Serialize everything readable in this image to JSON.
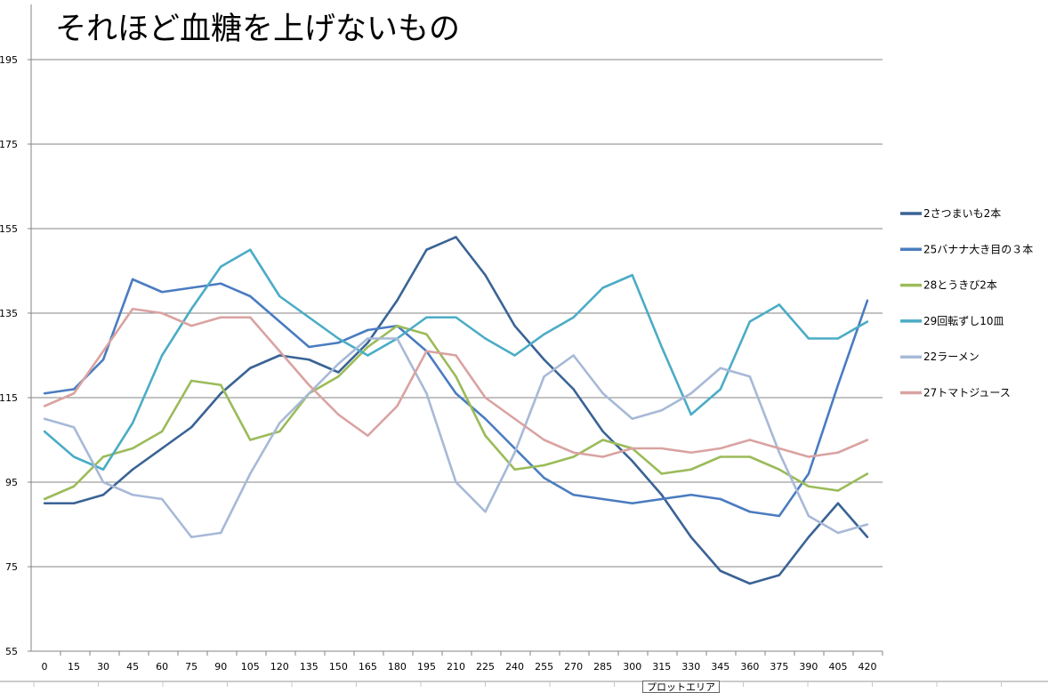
{
  "chart_data": {
    "type": "line",
    "title": "それほど血糖を上げないもの",
    "xlabel": "",
    "ylabel": "",
    "x": [
      0,
      15,
      30,
      45,
      60,
      75,
      90,
      105,
      120,
      135,
      150,
      165,
      180,
      195,
      210,
      225,
      240,
      255,
      270,
      285,
      300,
      315,
      330,
      345,
      360,
      375,
      390,
      405,
      420
    ],
    "ylim": [
      55,
      195
    ],
    "yticks": [
      55,
      75,
      95,
      115,
      135,
      155,
      175,
      195
    ],
    "grid": true,
    "legend": "right",
    "series": [
      {
        "name": "2さつまいも2本",
        "color": "#3a6395",
        "values": [
          90,
          90,
          92,
          98,
          103,
          108,
          116,
          122,
          125,
          124,
          121,
          128,
          138,
          150,
          153,
          144,
          132,
          124,
          117,
          107,
          100,
          92,
          82,
          74,
          71,
          73,
          82,
          90,
          82
        ]
      },
      {
        "name": "25バナナ大き目の３本",
        "color": "#4a7cc0",
        "values": [
          116,
          117,
          124,
          143,
          140,
          141,
          142,
          139,
          133,
          127,
          128,
          131,
          132,
          126,
          116,
          110,
          103,
          96,
          92,
          91,
          90,
          91,
          92,
          91,
          88,
          87,
          97,
          118,
          138
        ]
      },
      {
        "name": "28とうきび2本",
        "color": "#9bbb59",
        "values": [
          91,
          94,
          101,
          103,
          107,
          119,
          118,
          105,
          107,
          116,
          120,
          127,
          132,
          130,
          120,
          106,
          98,
          99,
          101,
          105,
          103,
          97,
          98,
          101,
          101,
          98,
          94,
          93,
          97
        ]
      },
      {
        "name": "29回転ずし10皿",
        "color": "#4bacc6",
        "values": [
          107,
          101,
          98,
          109,
          125,
          136,
          146,
          150,
          139,
          134,
          129,
          125,
          129,
          134,
          134,
          129,
          125,
          130,
          134,
          141,
          144,
          127,
          111,
          117,
          133,
          137,
          129,
          129,
          133
        ]
      },
      {
        "name": "22ラーメン",
        "color": "#a7b9d7",
        "values": [
          110,
          108,
          95,
          92,
          91,
          82,
          83,
          97,
          109,
          116,
          123,
          129,
          129,
          116,
          95,
          88,
          102,
          120,
          125,
          116,
          110,
          112,
          116,
          122,
          120,
          102,
          87,
          83,
          85
        ]
      },
      {
        "name": "27トマトジュース",
        "color": "#d9a3a1",
        "values": [
          113,
          116,
          126,
          136,
          135,
          132,
          134,
          134,
          126,
          118,
          111,
          106,
          113,
          126,
          125,
          115,
          110,
          105,
          102,
          101,
          103,
          103,
          102,
          103,
          105,
          103,
          101,
          102,
          105
        ]
      }
    ]
  },
  "tooltip": "プロットエリア"
}
